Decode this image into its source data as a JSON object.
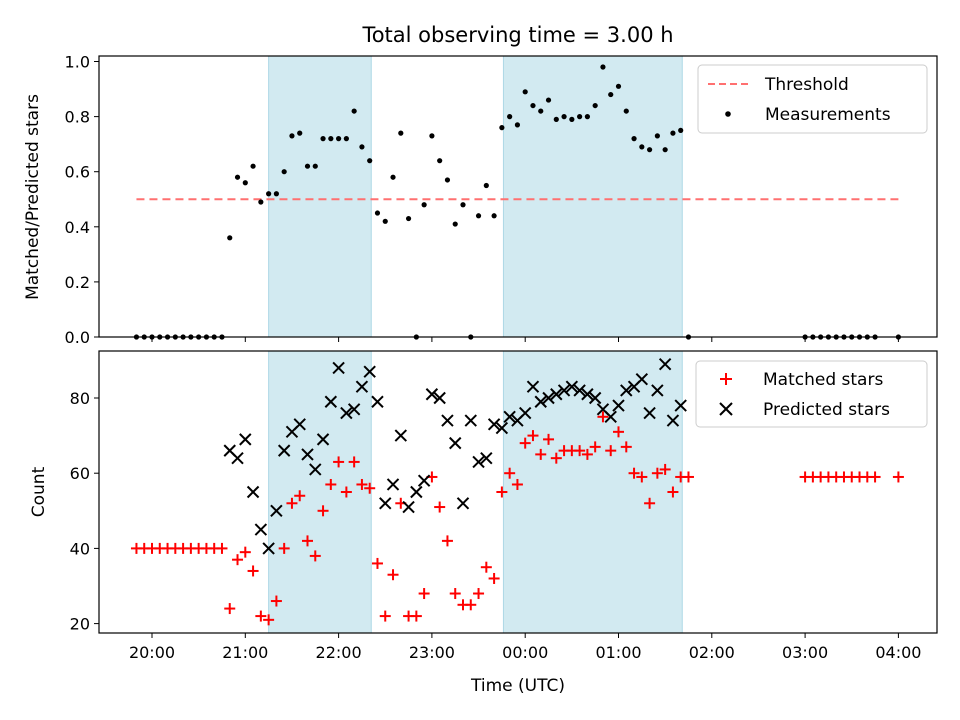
{
  "figure_title": "Total observing time = 3.00 h",
  "colors": {
    "threshold": "#ff7070",
    "measurements": "#000000",
    "matched": "#ff0000",
    "predicted": "#000000",
    "shade": "#add8e6"
  },
  "chart_data": [
    {
      "type": "scatter",
      "title": "Total observing time = 3.00 h",
      "xlabel": "",
      "ylabel": "Matched/Predicted stars",
      "ylim": [
        0.0,
        1.02
      ],
      "yticks": [
        "0.0",
        "0.2",
        "0.4",
        "0.6",
        "0.8",
        "1.0"
      ],
      "xticks": [
        "20:00",
        "21:00",
        "22:00",
        "23:00",
        "00:00",
        "01:00",
        "02:00",
        "03:00",
        "04:00"
      ],
      "shaded_intervals": [
        [
          "21:15",
          "22:21"
        ],
        [
          "23:46",
          "01:41"
        ]
      ],
      "legend_position": "top-right",
      "series": [
        {
          "name": "Threshold",
          "style": "dashed-line",
          "x": [
            "19:50",
            "04:00"
          ],
          "y": [
            0.5,
            0.5
          ]
        },
        {
          "name": "Measurements",
          "style": "dots",
          "x": [
            "19:50",
            "19:55",
            "20:00",
            "20:05",
            "20:10",
            "20:15",
            "20:20",
            "20:25",
            "20:30",
            "20:35",
            "20:40",
            "20:45",
            "20:50",
            "20:55",
            "21:00",
            "21:05",
            "21:10",
            "21:15",
            "21:20",
            "21:25",
            "21:30",
            "21:35",
            "21:40",
            "21:45",
            "21:50",
            "21:55",
            "22:00",
            "22:05",
            "22:10",
            "22:15",
            "22:20",
            "22:25",
            "22:30",
            "22:35",
            "22:40",
            "22:45",
            "22:50",
            "22:55",
            "23:00",
            "23:05",
            "23:10",
            "23:15",
            "23:20",
            "23:25",
            "23:30",
            "23:35",
            "23:40",
            "23:45",
            "23:50",
            "23:55",
            "00:00",
            "00:05",
            "00:10",
            "00:15",
            "00:20",
            "00:25",
            "00:30",
            "00:35",
            "00:40",
            "00:45",
            "00:50",
            "00:55",
            "01:00",
            "01:05",
            "01:10",
            "01:15",
            "01:20",
            "01:25",
            "01:30",
            "01:35",
            "01:40",
            "01:45",
            "03:00",
            "03:05",
            "03:10",
            "03:15",
            "03:20",
            "03:25",
            "03:30",
            "03:35",
            "03:40",
            "03:45",
            "04:00"
          ],
          "y": [
            0,
            0,
            0,
            0,
            0,
            0,
            0,
            0,
            0,
            0,
            0,
            0,
            0.36,
            0.58,
            0.56,
            0.62,
            0.49,
            0.52,
            0.52,
            0.6,
            0.73,
            0.74,
            0.62,
            0.62,
            0.72,
            0.72,
            0.72,
            0.72,
            0.82,
            0.69,
            0.64,
            0.45,
            0.42,
            0.58,
            0.74,
            0.43,
            0,
            0.48,
            0.73,
            0.64,
            0.57,
            0.41,
            0.48,
            0,
            0.44,
            0.55,
            0.44,
            0.76,
            0.8,
            0.77,
            0.89,
            0.84,
            0.82,
            0.86,
            0.79,
            0.8,
            0.79,
            0.8,
            0.8,
            0.84,
            0.98,
            0.88,
            0.91,
            0.82,
            0.72,
            0.69,
            0.68,
            0.73,
            0.68,
            0.74,
            0.75,
            0,
            0,
            0,
            0,
            0,
            0,
            0,
            0,
            0,
            0,
            0,
            0
          ]
        }
      ]
    },
    {
      "type": "scatter",
      "title": "",
      "xlabel": "Time (UTC)",
      "ylabel": "Count",
      "ylim": [
        17.5,
        92.5
      ],
      "yticks": [
        "20",
        "40",
        "60",
        "80"
      ],
      "xticks": [
        "20:00",
        "21:00",
        "22:00",
        "23:00",
        "00:00",
        "01:00",
        "02:00",
        "03:00",
        "04:00"
      ],
      "shaded_intervals": [
        [
          "21:15",
          "22:21"
        ],
        [
          "23:46",
          "01:41"
        ]
      ],
      "legend_position": "top-right",
      "series": [
        {
          "name": "Matched stars",
          "style": "plus",
          "x": [
            "19:50",
            "19:55",
            "20:00",
            "20:05",
            "20:10",
            "20:15",
            "20:20",
            "20:25",
            "20:30",
            "20:35",
            "20:40",
            "20:45",
            "20:50",
            "20:55",
            "21:00",
            "21:05",
            "21:10",
            "21:15",
            "21:20",
            "21:25",
            "21:30",
            "21:35",
            "21:40",
            "21:45",
            "21:50",
            "21:55",
            "22:00",
            "22:05",
            "22:10",
            "22:15",
            "22:20",
            "22:25",
            "22:30",
            "22:35",
            "22:40",
            "22:45",
            "22:50",
            "22:55",
            "23:00",
            "23:05",
            "23:10",
            "23:15",
            "23:20",
            "23:25",
            "23:30",
            "23:35",
            "23:40",
            "23:45",
            "23:50",
            "23:55",
            "00:00",
            "00:05",
            "00:10",
            "00:15",
            "00:20",
            "00:25",
            "00:30",
            "00:35",
            "00:40",
            "00:45",
            "00:50",
            "00:55",
            "01:00",
            "01:05",
            "01:10",
            "01:15",
            "01:20",
            "01:25",
            "01:30",
            "01:35",
            "01:40",
            "01:45",
            "03:00",
            "03:05",
            "03:10",
            "03:15",
            "03:20",
            "03:25",
            "03:30",
            "03:35",
            "03:40",
            "03:45",
            "04:00"
          ],
          "y": [
            40,
            40,
            40,
            40,
            40,
            40,
            40,
            40,
            40,
            40,
            40,
            40,
            24,
            37,
            39,
            34,
            22,
            21,
            26,
            40,
            52,
            54,
            42,
            38,
            50,
            57,
            63,
            55,
            63,
            57,
            56,
            36,
            22,
            33,
            52,
            22,
            22,
            28,
            59,
            51,
            42,
            28,
            25,
            25,
            28,
            35,
            32,
            55,
            60,
            57,
            68,
            70,
            65,
            69,
            64,
            66,
            66,
            66,
            65,
            67,
            75,
            66,
            71,
            67,
            60,
            59,
            52,
            60,
            61,
            55,
            59,
            59,
            59,
            59,
            59,
            59,
            59,
            59,
            59,
            59,
            59,
            59,
            59
          ]
        },
        {
          "name": "Predicted stars",
          "style": "x",
          "x": [
            "20:50",
            "20:55",
            "21:00",
            "21:05",
            "21:10",
            "21:15",
            "21:20",
            "21:25",
            "21:30",
            "21:35",
            "21:40",
            "21:45",
            "21:50",
            "21:55",
            "22:00",
            "22:05",
            "22:10",
            "22:15",
            "22:20",
            "22:25",
            "22:30",
            "22:35",
            "22:40",
            "22:45",
            "22:50",
            "22:55",
            "23:00",
            "23:05",
            "23:10",
            "23:15",
            "23:20",
            "23:25",
            "23:30",
            "23:35",
            "23:40",
            "23:45",
            "23:50",
            "23:55",
            "00:00",
            "00:05",
            "00:10",
            "00:15",
            "00:20",
            "00:25",
            "00:30",
            "00:35",
            "00:40",
            "00:45",
            "00:50",
            "00:55",
            "01:00",
            "01:05",
            "01:10",
            "01:15",
            "01:20",
            "01:25",
            "01:30",
            "01:35",
            "01:40"
          ],
          "y": [
            66,
            64,
            69,
            55,
            45,
            40,
            50,
            66,
            71,
            73,
            65,
            61,
            69,
            79,
            88,
            76,
            77,
            83,
            87,
            79,
            52,
            57,
            70,
            51,
            55,
            58,
            81,
            80,
            74,
            68,
            52,
            74,
            63,
            64,
            73,
            72,
            75,
            74,
            76,
            83,
            79,
            80,
            81,
            82,
            83,
            82,
            81,
            80,
            77,
            75,
            78,
            82,
            83,
            85,
            76,
            82,
            89,
            74,
            78
          ]
        }
      ]
    }
  ]
}
